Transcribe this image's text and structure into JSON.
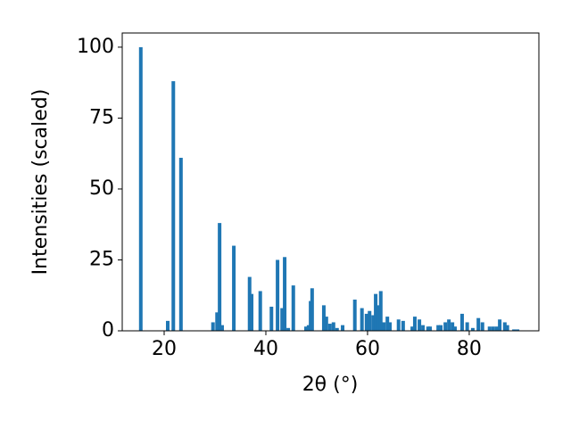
{
  "chart_data": {
    "type": "bar",
    "xlabel": "2θ (°)",
    "ylabel": "Intensities (scaled)",
    "x": [
      15.4,
      20.7,
      21.8,
      23.3,
      29.6,
      30.4,
      30.9,
      31.4,
      33.7,
      36.8,
      37.2,
      38.9,
      41.1,
      42.3,
      43.2,
      43.7,
      44.4,
      45.4,
      47.9,
      48.4,
      48.8,
      49.1,
      51.4,
      51.9,
      52.6,
      53.3,
      54.0,
      55.1,
      57.5,
      58.9,
      59.8,
      60.4,
      61.1,
      61.6,
      62.1,
      62.6,
      63.2,
      63.9,
      64.4,
      66.1,
      67.0,
      68.8,
      69.3,
      70.2,
      70.9,
      71.9,
      72.3,
      73.9,
      74.4,
      75.3,
      76.0,
      76.7,
      77.2,
      78.6,
      79.6,
      80.7,
      81.8,
      82.6,
      84.0,
      84.7,
      85.4,
      86.0,
      87.0,
      87.5,
      88.8,
      89.5
    ],
    "values": [
      100,
      3.5,
      88,
      61,
      3,
      6.5,
      38,
      2,
      30,
      19,
      13,
      14,
      8.5,
      25,
      8,
      26,
      1,
      16,
      1.5,
      2,
      10.5,
      15,
      9,
      5,
      2.5,
      3,
      1,
      2,
      11,
      8,
      6,
      7,
      5.5,
      13,
      9,
      14,
      3,
      5,
      3,
      4,
      3.5,
      1.5,
      5,
      4,
      2,
      1.5,
      1.5,
      2,
      2,
      3,
      4,
      3,
      1.5,
      6,
      3,
      1,
      4.5,
      3,
      1.5,
      1.5,
      1.5,
      4,
      3,
      2,
      0.5,
      0.5
    ],
    "color": "#1f77b4",
    "xlim": [
      11.75,
      93.7
    ],
    "xticks": [
      20,
      40,
      60,
      80
    ],
    "ylim": [
      0,
      105
    ],
    "yticks": [
      0,
      25,
      50,
      75,
      100
    ],
    "grid": false
  }
}
